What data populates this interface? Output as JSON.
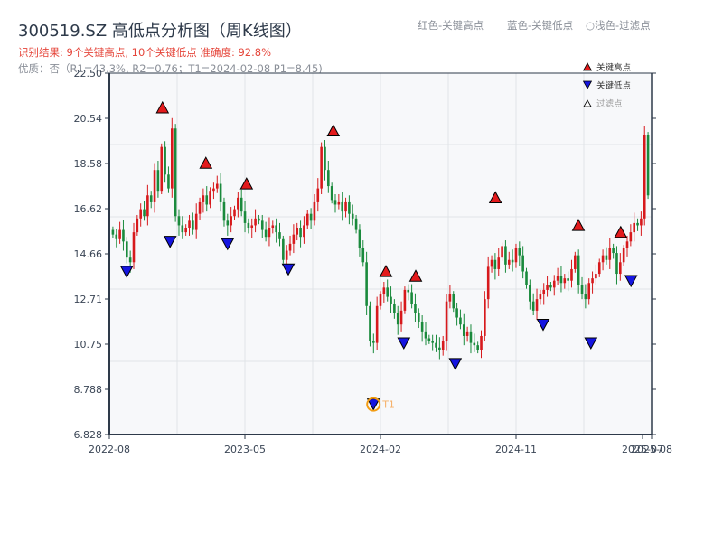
{
  "header": {
    "title": "300519.SZ 高低点分析图（周K线图）",
    "result_line": "识别结果: 9个关键高点, 10个关键低点  准确度: 92.8%",
    "quality_line": "优质：否（R1=43.3%, R2=0.76；T1=2024-02-08 P1=8.45)"
  },
  "top_legend": {
    "red": "红色-关键高点",
    "blue": "蓝色-关键低点",
    "light": "○浅色-过滤点"
  },
  "legend": {
    "items": [
      {
        "label": "关键高点",
        "marker": "triangle-up",
        "color": "#e31a1c"
      },
      {
        "label": "关键低点",
        "marker": "triangle-down",
        "color": "#1f1fdd"
      },
      {
        "label": "过滤点",
        "marker": "triangle-up-hollow",
        "color": "#ffffff"
      }
    ]
  },
  "colors": {
    "up": "#d7191c",
    "down": "#1a8a3c",
    "high_marker": "#e31a1c",
    "low_marker": "#1515e0",
    "t1_ring": "#f39c12",
    "plot_bg": "#f7f8fa",
    "grid": "#e1e4e8",
    "axis": "#2e3a4a"
  },
  "annotation": {
    "label": "T1",
    "date": "2024-02-08",
    "price": 8.45
  },
  "chart_data": {
    "type": "candlestick",
    "title": "300519.SZ 高低点分析图（周K线图）",
    "xlabel": "",
    "ylabel": "",
    "ylim": [
      6.828,
      22.5
    ],
    "yticks": [
      "22.50",
      "20.54",
      "18.58",
      "16.62",
      "14.66",
      "12.71",
      "10.75",
      "8.788",
      "6.828"
    ],
    "xticks": [
      "2022-08",
      "2023-05",
      "2024-02",
      "2024-11",
      "2025-07",
      "2025-08"
    ],
    "grid": true,
    "legend_position": "upper right",
    "key_highs": [
      {
        "x_frac": 0.098,
        "price": 20.7
      },
      {
        "x_frac": 0.178,
        "price": 18.3
      },
      {
        "x_frac": 0.253,
        "price": 17.4
      },
      {
        "x_frac": 0.413,
        "price": 19.7
      },
      {
        "x_frac": 0.51,
        "price": 13.6
      },
      {
        "x_frac": 0.565,
        "price": 13.4
      },
      {
        "x_frac": 0.712,
        "price": 16.8
      },
      {
        "x_frac": 0.865,
        "price": 15.6
      },
      {
        "x_frac": 0.943,
        "price": 15.3
      }
    ],
    "key_lows": [
      {
        "x_frac": 0.032,
        "price": 14.2
      },
      {
        "x_frac": 0.112,
        "price": 15.5
      },
      {
        "x_frac": 0.218,
        "price": 15.4
      },
      {
        "x_frac": 0.33,
        "price": 14.3
      },
      {
        "x_frac": 0.487,
        "price": 8.45
      },
      {
        "x_frac": 0.543,
        "price": 11.1
      },
      {
        "x_frac": 0.638,
        "price": 10.2
      },
      {
        "x_frac": 0.8,
        "price": 11.9
      },
      {
        "x_frac": 0.888,
        "price": 11.1
      },
      {
        "x_frac": 0.962,
        "price": 13.8
      }
    ],
    "close_series_approx": [
      15.5,
      15.3,
      15.7,
      15.2,
      14.5,
      14.3,
      15.6,
      16.2,
      16.6,
      16.3,
      17.2,
      16.9,
      18.3,
      17.4,
      19.3,
      18.1,
      17.5,
      20.1,
      16.3,
      15.9,
      15.6,
      15.8,
      16.1,
      15.7,
      16.4,
      16.9,
      17.2,
      16.8,
      17.4,
      17.5,
      17.7,
      16.9,
      16.1,
      15.9,
      16.3,
      16.6,
      17.1,
      16.5,
      16.0,
      15.8,
      15.9,
      16.2,
      16.1,
      15.7,
      15.4,
      15.8,
      15.9,
      15.6,
      15.3,
      14.4,
      14.8,
      15.1,
      15.5,
      15.8,
      15.4,
      15.9,
      16.4,
      16.1,
      16.9,
      17.5,
      19.3,
      18.3,
      17.6,
      17.0,
      16.8,
      16.9,
      16.5,
      16.9,
      16.4,
      16.2,
      15.7,
      14.9,
      14.3,
      12.4,
      10.9,
      10.8,
      12.4,
      12.9,
      13.2,
      12.8,
      12.5,
      12.1,
      11.6,
      12.2,
      13.1,
      13.0,
      12.5,
      12.1,
      11.7,
      11.3,
      11.0,
      10.9,
      10.8,
      10.6,
      10.5,
      10.9,
      12.6,
      12.9,
      12.3,
      11.9,
      11.6,
      11.1,
      11.3,
      10.8,
      10.7,
      10.5,
      11.1,
      12.7,
      14.1,
      14.4,
      14.0,
      14.5,
      15.0,
      14.2,
      14.4,
      14.3,
      14.9,
      14.6,
      13.9,
      13.3,
      12.6,
      12.2,
      12.7,
      12.9,
      13.1,
      13.3,
      13.2,
      13.5,
      13.7,
      13.4,
      13.6,
      13.5,
      14.0,
      14.6,
      13.3,
      12.9,
      12.7,
      13.4,
      13.6,
      13.8,
      14.3,
      14.6,
      14.4,
      14.9,
      14.7,
      13.8,
      14.3,
      14.9,
      15.2,
      15.6,
      16.0,
      15.9,
      16.2,
      19.8,
      17.2
    ]
  }
}
